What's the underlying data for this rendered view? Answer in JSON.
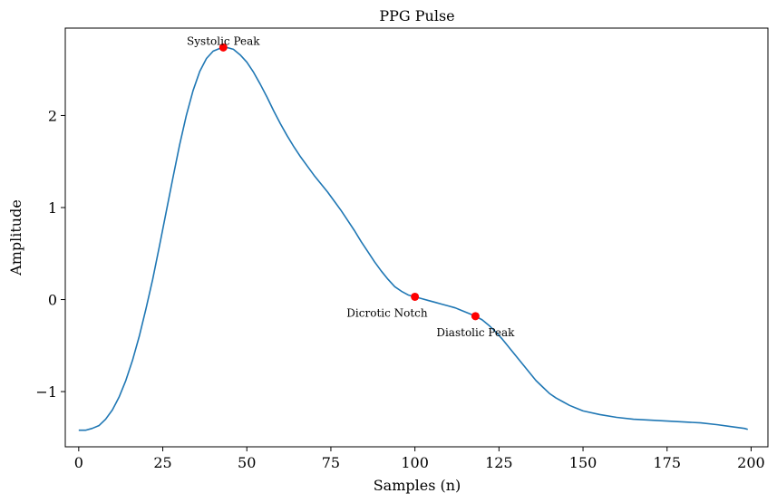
{
  "chart_data": {
    "type": "line",
    "title": "PPG Pulse",
    "xlabel": "Samples (n)",
    "ylabel": "Amplitude",
    "xlim": [
      -4,
      205
    ],
    "ylim": [
      -1.6,
      2.95
    ],
    "xticks": [
      0,
      25,
      50,
      75,
      100,
      125,
      150,
      175,
      200
    ],
    "yticks": [
      -1,
      0,
      1,
      2
    ],
    "ytick_labels": [
      "−1",
      "0",
      "1",
      "2"
    ],
    "grid": false,
    "series": [
      {
        "color": "#1f77b4",
        "points": [
          [
            0,
            -1.42
          ],
          [
            2,
            -1.42
          ],
          [
            4,
            -1.4
          ],
          [
            6,
            -1.37
          ],
          [
            8,
            -1.3
          ],
          [
            10,
            -1.2
          ],
          [
            12,
            -1.06
          ],
          [
            14,
            -0.88
          ],
          [
            16,
            -0.66
          ],
          [
            18,
            -0.4
          ],
          [
            20,
            -0.1
          ],
          [
            22,
            0.22
          ],
          [
            24,
            0.58
          ],
          [
            26,
            0.95
          ],
          [
            28,
            1.32
          ],
          [
            30,
            1.68
          ],
          [
            32,
            2.0
          ],
          [
            34,
            2.27
          ],
          [
            36,
            2.48
          ],
          [
            38,
            2.62
          ],
          [
            40,
            2.7
          ],
          [
            42,
            2.73
          ],
          [
            43,
            2.74
          ],
          [
            44,
            2.74
          ],
          [
            46,
            2.72
          ],
          [
            48,
            2.66
          ],
          [
            50,
            2.58
          ],
          [
            52,
            2.47
          ],
          [
            54,
            2.34
          ],
          [
            56,
            2.2
          ],
          [
            58,
            2.05
          ],
          [
            60,
            1.91
          ],
          [
            62,
            1.78
          ],
          [
            64,
            1.66
          ],
          [
            66,
            1.55
          ],
          [
            68,
            1.45
          ],
          [
            70,
            1.35
          ],
          [
            72,
            1.26
          ],
          [
            74,
            1.17
          ],
          [
            76,
            1.07
          ],
          [
            78,
            0.97
          ],
          [
            80,
            0.86
          ],
          [
            82,
            0.75
          ],
          [
            84,
            0.63
          ],
          [
            86,
            0.52
          ],
          [
            88,
            0.41
          ],
          [
            90,
            0.31
          ],
          [
            92,
            0.22
          ],
          [
            94,
            0.14
          ],
          [
            96,
            0.09
          ],
          [
            98,
            0.05
          ],
          [
            100,
            0.03
          ],
          [
            102,
            0.01
          ],
          [
            104,
            -0.01
          ],
          [
            106,
            -0.03
          ],
          [
            108,
            -0.05
          ],
          [
            110,
            -0.07
          ],
          [
            112,
            -0.09
          ],
          [
            114,
            -0.12
          ],
          [
            116,
            -0.15
          ],
          [
            118,
            -0.18
          ],
          [
            120,
            -0.22
          ],
          [
            122,
            -0.28
          ],
          [
            124,
            -0.35
          ],
          [
            126,
            -0.43
          ],
          [
            128,
            -0.52
          ],
          [
            130,
            -0.61
          ],
          [
            132,
            -0.7
          ],
          [
            134,
            -0.79
          ],
          [
            136,
            -0.88
          ],
          [
            138,
            -0.95
          ],
          [
            140,
            -1.02
          ],
          [
            142,
            -1.07
          ],
          [
            144,
            -1.11
          ],
          [
            146,
            -1.15
          ],
          [
            148,
            -1.18
          ],
          [
            150,
            -1.21
          ],
          [
            155,
            -1.25
          ],
          [
            160,
            -1.28
          ],
          [
            165,
            -1.3
          ],
          [
            170,
            -1.31
          ],
          [
            175,
            -1.32
          ],
          [
            180,
            -1.33
          ],
          [
            185,
            -1.34
          ],
          [
            190,
            -1.36
          ],
          [
            194,
            -1.38
          ],
          [
            196,
            -1.39
          ],
          [
            198,
            -1.4
          ],
          [
            199,
            -1.41
          ]
        ]
      }
    ],
    "annotations": [
      {
        "label": "Systolic Peak",
        "x": 43,
        "y": 2.74,
        "label_anchor": "middle",
        "label_dx": 0,
        "label_dy": -3
      },
      {
        "label": "Dicrotic Notch",
        "x": 100,
        "y": 0.03,
        "label_anchor": "end",
        "label_dx": 14,
        "label_dy": 22
      },
      {
        "label": "Diastolic Peak",
        "x": 118,
        "y": -0.18,
        "label_anchor": "middle",
        "label_dx": 0,
        "label_dy": 22
      }
    ],
    "marker_color": "#ff0000"
  }
}
